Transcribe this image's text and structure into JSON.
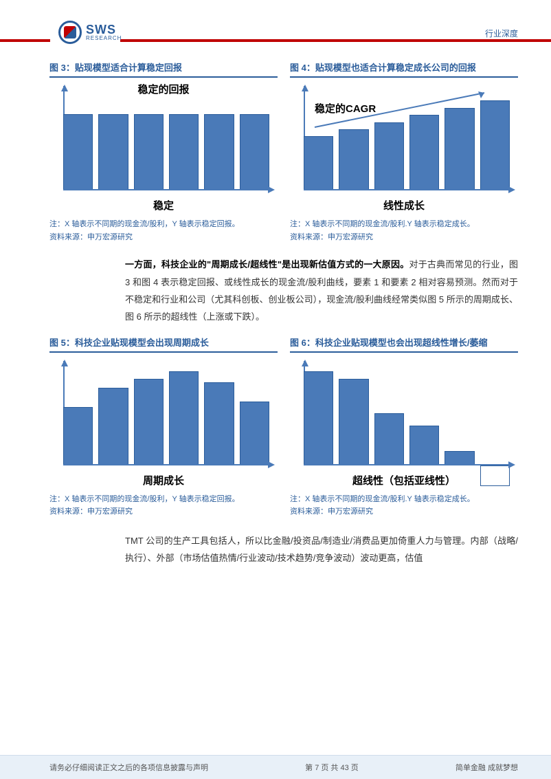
{
  "header": {
    "logo_main": "SWS",
    "logo_sub": "RESEARCH",
    "right_label": "行业深度"
  },
  "colors": {
    "brand_blue": "#2a5c9a",
    "bar_fill": "#4a7ab8",
    "brand_red": "#c00000",
    "footer_bg": "#e8f0f8",
    "text_body": "#333333"
  },
  "figures": {
    "f3": {
      "title": "图 3：贴现模型适合计算稳定回报",
      "annot_top": "稳定的回报",
      "x_label": "稳定",
      "type": "bar",
      "values": [
        100,
        100,
        100,
        100,
        100,
        100
      ],
      "bar_color": "#4a7ab8",
      "note": "注：X 轴表示不同期的现金流/股利，Y 轴表示稳定回报。",
      "source": "资料来源：申万宏源研究"
    },
    "f4": {
      "title": "图 4：贴现模型也适合计算稳定成长公司的回报",
      "annot_top": "稳定的CAGR",
      "x_label": "线性成长",
      "type": "bar",
      "values": [
        60,
        68,
        76,
        84,
        92,
        100
      ],
      "bar_color": "#4a7ab8",
      "note": "注：X 轴表示不同期的现金流/股利.Y 轴表示稳定成长。",
      "source": "资料来源：申万宏源研究"
    },
    "f5": {
      "title": "图 5：科技企业贴现模型会出现周期成长",
      "x_label": "周期成长",
      "type": "bar",
      "values": [
        62,
        82,
        92,
        100,
        88,
        68
      ],
      "bar_color": "#4a7ab8",
      "note": "注：X 轴表示不同期的现金流/股利，Y 轴表示稳定回报。",
      "source": "资料来源：申万宏源研究"
    },
    "f6": {
      "title": "图 6：科技企业贴现模型也会出现超线性增长/萎缩",
      "x_label": "超线性（包括亚线性）",
      "type": "bar",
      "values": [
        100,
        92,
        55,
        42,
        15
      ],
      "hollow_values": [
        22
      ],
      "bar_color": "#4a7ab8",
      "note": "注：X 轴表示不同期的现金流/股利.Y 轴表示稳定成长。",
      "source": "资料来源：申万宏源研究"
    }
  },
  "paragraphs": {
    "p1_bold": "一方面，科技企业的\"周期成长/超线性\"是出现新估值方式的一大原因。",
    "p1_rest": "对于古典而常见的行业，图 3 和图 4 表示稳定回报、或线性成长的现金流/股利曲线，要素 1 和要素 2 相对容易预测。然而对于不稳定和行业和公司（尤其科创板、创业板公司），现金流/股利曲线经常类似图 5 所示的周期成长、图 6 所示的超线性（上涨或下跌）。",
    "p2": "TMT 公司的生产工具包括人，所以比金融/投资品/制造业/消费品更加倚重人力与管理。内部（战略/执行）、外部（市场估值热情/行业波动/技术趋势/竞争波动）波动更高，估值"
  },
  "footer": {
    "left": "请务必仔细阅读正文之后的各项信息披露与声明",
    "center": "第 7 页 共 43 页",
    "right": "简单金融 成就梦想"
  }
}
